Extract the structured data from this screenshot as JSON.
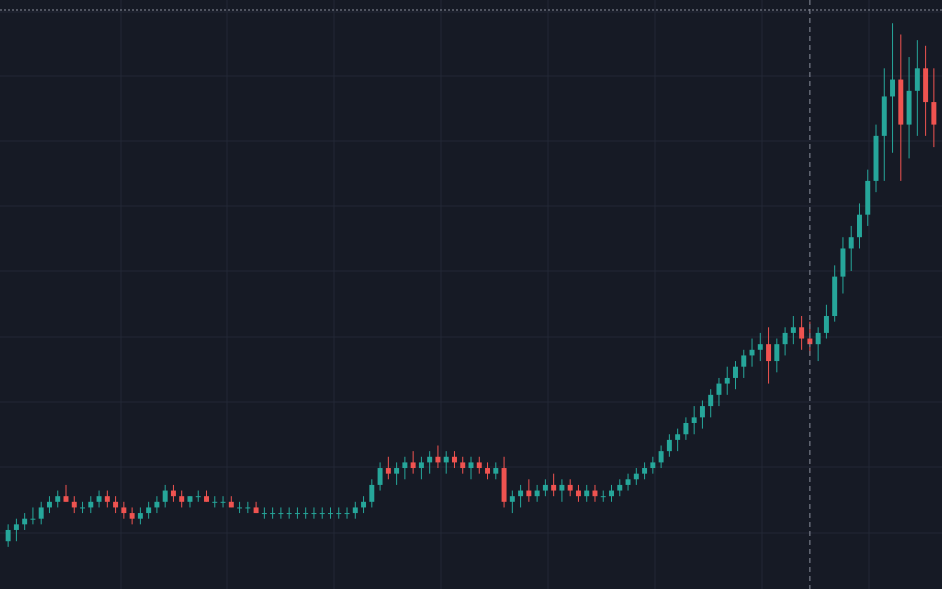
{
  "colors": {
    "background": "#161a25",
    "grid": "#222735",
    "up": "#26a69a",
    "down": "#ef5350",
    "crosshair": "#8a8f9c"
  },
  "chart_data": {
    "type": "candlestick",
    "title": "",
    "xlabel": "",
    "ylabel": "",
    "grid": true,
    "legend": "none",
    "ylim": [
      0,
      100
    ],
    "crosshair_index": 97,
    "candles": [
      [
        6,
        9,
        5,
        8
      ],
      [
        8,
        10,
        6,
        9
      ],
      [
        9,
        11,
        8,
        10
      ],
      [
        10,
        12,
        9,
        10
      ],
      [
        10,
        13,
        9,
        12
      ],
      [
        12,
        14,
        11,
        13
      ],
      [
        13,
        15,
        12,
        14
      ],
      [
        14,
        16,
        13,
        13
      ],
      [
        13,
        14,
        11,
        12
      ],
      [
        12,
        13,
        11,
        12
      ],
      [
        12,
        14,
        11,
        13
      ],
      [
        13,
        15,
        12,
        14
      ],
      [
        14,
        15,
        12,
        13
      ],
      [
        13,
        14,
        11,
        12
      ],
      [
        12,
        13,
        10,
        11
      ],
      [
        11,
        12,
        9,
        10
      ],
      [
        10,
        12,
        9,
        11
      ],
      [
        11,
        13,
        10,
        12
      ],
      [
        12,
        14,
        11,
        13
      ],
      [
        13,
        16,
        12,
        15
      ],
      [
        15,
        16,
        13,
        14
      ],
      [
        14,
        15,
        12,
        13
      ],
      [
        13,
        14,
        12,
        14
      ],
      [
        14,
        15,
        13,
        14
      ],
      [
        14,
        15,
        13,
        13
      ],
      [
        13,
        14,
        12,
        13
      ],
      [
        13,
        14,
        12,
        13
      ],
      [
        13,
        14,
        12,
        12
      ],
      [
        12,
        13,
        11,
        12
      ],
      [
        12,
        13,
        11,
        12
      ],
      [
        12,
        13,
        11,
        11
      ],
      [
        11,
        12,
        10,
        11
      ],
      [
        11,
        12,
        10,
        11
      ],
      [
        11,
        12,
        10,
        11
      ],
      [
        11,
        12,
        10,
        11
      ],
      [
        11,
        12,
        10,
        11
      ],
      [
        11,
        12,
        10,
        11
      ],
      [
        11,
        12,
        10,
        11
      ],
      [
        11,
        12,
        10,
        11
      ],
      [
        11,
        12,
        10,
        11
      ],
      [
        11,
        12,
        10,
        11
      ],
      [
        11,
        12,
        10,
        11
      ],
      [
        11,
        13,
        10,
        12
      ],
      [
        12,
        14,
        11,
        13
      ],
      [
        13,
        17,
        12,
        16
      ],
      [
        16,
        20,
        15,
        19
      ],
      [
        19,
        21,
        17,
        18
      ],
      [
        18,
        20,
        16,
        19
      ],
      [
        19,
        21,
        17,
        20
      ],
      [
        20,
        22,
        18,
        19
      ],
      [
        19,
        21,
        17,
        20
      ],
      [
        20,
        22,
        18,
        21
      ],
      [
        21,
        23,
        19,
        20
      ],
      [
        20,
        22,
        18,
        21
      ],
      [
        21,
        22,
        19,
        20
      ],
      [
        20,
        21,
        18,
        19
      ],
      [
        19,
        21,
        17,
        20
      ],
      [
        20,
        21,
        18,
        19
      ],
      [
        19,
        20,
        17,
        18
      ],
      [
        18,
        20,
        17,
        19
      ],
      [
        19,
        21,
        12,
        13
      ],
      [
        13,
        15,
        11,
        14
      ],
      [
        14,
        16,
        12,
        15
      ],
      [
        15,
        17,
        13,
        14
      ],
      [
        14,
        16,
        13,
        15
      ],
      [
        15,
        17,
        14,
        16
      ],
      [
        16,
        18,
        14,
        15
      ],
      [
        15,
        17,
        13,
        16
      ],
      [
        16,
        17,
        14,
        15
      ],
      [
        15,
        16,
        13,
        14
      ],
      [
        14,
        16,
        13,
        15
      ],
      [
        15,
        16,
        13,
        14
      ],
      [
        14,
        15,
        13,
        14
      ],
      [
        14,
        16,
        13,
        15
      ],
      [
        15,
        17,
        14,
        16
      ],
      [
        16,
        18,
        15,
        17
      ],
      [
        17,
        19,
        16,
        18
      ],
      [
        18,
        20,
        17,
        19
      ],
      [
        19,
        21,
        18,
        20
      ],
      [
        20,
        23,
        19,
        22
      ],
      [
        22,
        25,
        21,
        24
      ],
      [
        24,
        26,
        22,
        25
      ],
      [
        25,
        28,
        24,
        27
      ],
      [
        27,
        30,
        25,
        28
      ],
      [
        28,
        31,
        26,
        30
      ],
      [
        30,
        33,
        28,
        32
      ],
      [
        32,
        35,
        30,
        34
      ],
      [
        34,
        37,
        32,
        35
      ],
      [
        35,
        38,
        33,
        37
      ],
      [
        37,
        40,
        35,
        39
      ],
      [
        39,
        42,
        37,
        40
      ],
      [
        40,
        43,
        38,
        41
      ],
      [
        41,
        44,
        34,
        38
      ],
      [
        38,
        42,
        36,
        41
      ],
      [
        41,
        44,
        39,
        43
      ],
      [
        43,
        46,
        41,
        44
      ],
      [
        44,
        46,
        40,
        42
      ],
      [
        42,
        45,
        39,
        41
      ],
      [
        41,
        44,
        38,
        43
      ],
      [
        43,
        48,
        42,
        46
      ],
      [
        46,
        55,
        45,
        53
      ],
      [
        53,
        60,
        50,
        58
      ],
      [
        58,
        62,
        54,
        60
      ],
      [
        60,
        66,
        58,
        64
      ],
      [
        64,
        72,
        62,
        70
      ],
      [
        70,
        80,
        68,
        78
      ],
      [
        78,
        90,
        70,
        85
      ],
      [
        85,
        98,
        75,
        88
      ],
      [
        88,
        96,
        70,
        80
      ],
      [
        80,
        92,
        74,
        86
      ],
      [
        86,
        95,
        78,
        90
      ],
      [
        90,
        94,
        78,
        84
      ],
      [
        84,
        90,
        76,
        80
      ]
    ]
  }
}
